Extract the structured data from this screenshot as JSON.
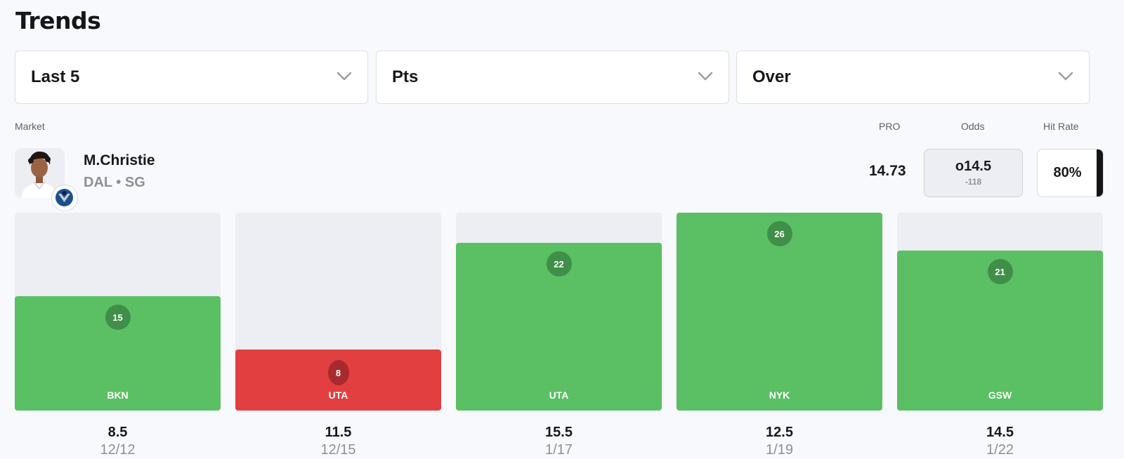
{
  "page": {
    "title": "Trends"
  },
  "filters": [
    {
      "label": "Last 5"
    },
    {
      "label": "Pts"
    },
    {
      "label": "Over"
    }
  ],
  "headers": {
    "market": "Market",
    "pro": "PRO",
    "odds": "Odds",
    "hit_rate": "Hit Rate"
  },
  "player": {
    "name": "M.Christie",
    "meta": "DAL • SG",
    "pro": "14.73",
    "odds_line": "o14.5",
    "odds_price": "-118",
    "hit_rate": "80%",
    "avatar_icon": "player-headshot",
    "team_logo_icon": "mavericks-logo"
  },
  "colors": {
    "hit": "#5bbf64",
    "miss": "#e23f40",
    "track": "#eceef4"
  },
  "chart_data": {
    "type": "bar",
    "categories": [
      "12/12",
      "12/15",
      "1/17",
      "1/19",
      "1/22"
    ],
    "opponents": [
      "BKN",
      "UTA",
      "UTA",
      "NYK",
      "GSW"
    ],
    "values": [
      15,
      8,
      22,
      26,
      21
    ],
    "lines": [
      "8.5",
      "11.5",
      "15.5",
      "12.5",
      "14.5"
    ],
    "results": [
      "hit",
      "miss",
      "hit",
      "hit",
      "hit"
    ],
    "ylim": [
      0,
      26
    ]
  }
}
